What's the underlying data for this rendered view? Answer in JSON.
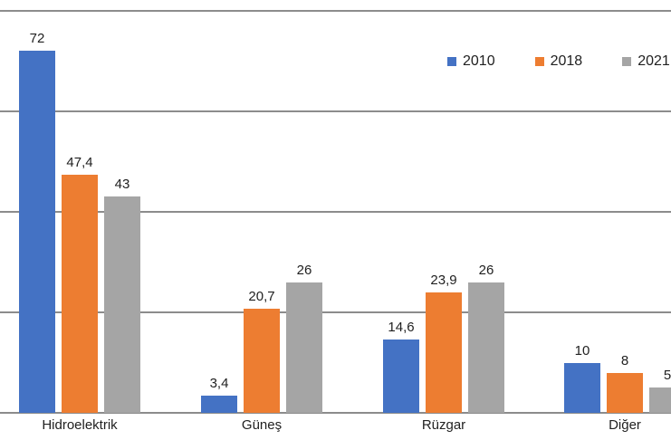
{
  "chart_data": {
    "type": "bar",
    "title": "",
    "xlabel": "",
    "ylabel": "",
    "categories": [
      "Hidroelektrik",
      "Güneş",
      "Rüzgar",
      "Diğer"
    ],
    "series": [
      {
        "name": "2010",
        "color": "#4472C4",
        "values": [
          72,
          3.4,
          14.6,
          10
        ],
        "labels": [
          "72",
          "3,4",
          "14,6",
          "10"
        ]
      },
      {
        "name": "2018",
        "color": "#ED7D31",
        "values": [
          47.4,
          20.7,
          23.9,
          8
        ],
        "labels": [
          "47,4",
          "20,7",
          "23,9",
          "8"
        ]
      },
      {
        "name": "2021",
        "color": "#A5A5A5",
        "values": [
          43,
          26,
          26,
          5
        ],
        "labels": [
          "43",
          "26",
          "26",
          "5"
        ]
      }
    ],
    "ylim": [
      0,
      80
    ],
    "gridline_step": 20,
    "grid": true,
    "y_axis_tick_labels_visible": false,
    "legend_position": "top-right",
    "value_decimal_separator": ","
  },
  "colors": {
    "grid": "#8C8C8C",
    "axis": "#8C8C8C",
    "text": "#212121",
    "background": "#FFFFFF"
  }
}
